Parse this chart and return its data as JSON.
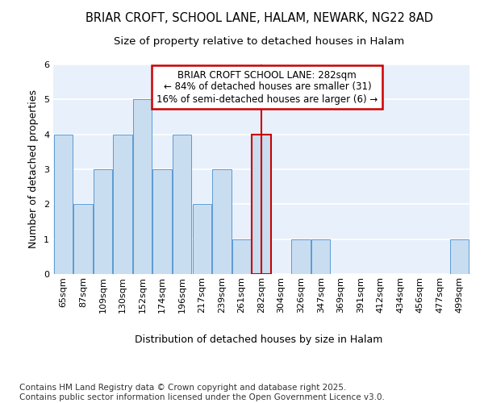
{
  "title1": "BRIAR CROFT, SCHOOL LANE, HALAM, NEWARK, NG22 8AD",
  "title2": "Size of property relative to detached houses in Halam",
  "xlabel": "Distribution of detached houses by size in Halam",
  "ylabel": "Number of detached properties",
  "categories": [
    "65sqm",
    "87sqm",
    "109sqm",
    "130sqm",
    "152sqm",
    "174sqm",
    "196sqm",
    "217sqm",
    "239sqm",
    "261sqm",
    "282sqm",
    "304sqm",
    "326sqm",
    "347sqm",
    "369sqm",
    "391sqm",
    "412sqm",
    "434sqm",
    "456sqm",
    "477sqm",
    "499sqm"
  ],
  "values": [
    4,
    2,
    3,
    4,
    5,
    3,
    4,
    2,
    3,
    1,
    4,
    0,
    1,
    1,
    0,
    0,
    0,
    0,
    0,
    0,
    1
  ],
  "highlight_index": 10,
  "bar_color": "#c9ddf0",
  "bar_edge_color": "#5b9bd5",
  "highlight_line_color": "#cc0000",
  "highlight_bar_edge_color": "#cc0000",
  "annotation_text": "BRIAR CROFT SCHOOL LANE: 282sqm\n← 84% of detached houses are smaller (31)\n16% of semi-detached houses are larger (6) →",
  "annotation_box_edge": "#cc0000",
  "ylim": [
    0,
    6
  ],
  "yticks": [
    0,
    1,
    2,
    3,
    4,
    5,
    6
  ],
  "footnote": "Contains HM Land Registry data © Crown copyright and database right 2025.\nContains public sector information licensed under the Open Government Licence v3.0.",
  "bg_color": "#e8f0fb",
  "fig_bg_color": "#ffffff",
  "grid_color": "#ffffff",
  "title_fontsize": 10.5,
  "subtitle_fontsize": 9.5,
  "label_fontsize": 9,
  "tick_fontsize": 8,
  "annotation_fontsize": 8.5,
  "footnote_fontsize": 7.5
}
